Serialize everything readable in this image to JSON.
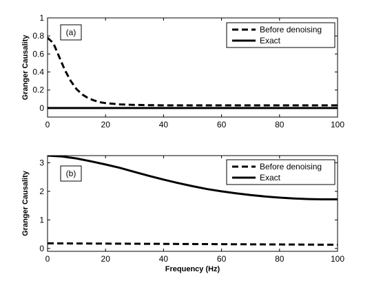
{
  "chart_data": [
    {
      "type": "line",
      "panel_label": "(a)",
      "xlabel": "",
      "ylabel": "Granger Causality",
      "xlim": [
        0,
        100
      ],
      "ylim": [
        -0.1,
        1.0
      ],
      "xticks": [
        0,
        20,
        40,
        60,
        80,
        100
      ],
      "yticks": [
        0,
        0.2,
        0.4,
        0.6,
        0.8,
        1
      ],
      "ytick_labels": [
        "0",
        "0.2",
        "0.4",
        "0.6",
        "0.8",
        "1"
      ],
      "legend_position": "top-right",
      "grid": false,
      "series": [
        {
          "name": "Before denoising",
          "style": "dashed",
          "x": [
            0,
            2,
            4,
            6,
            8,
            10,
            12,
            14,
            16,
            18,
            20,
            25,
            30,
            35,
            40,
            50,
            60,
            70,
            80,
            90,
            100
          ],
          "y": [
            0.78,
            0.72,
            0.57,
            0.42,
            0.3,
            0.21,
            0.15,
            0.11,
            0.085,
            0.065,
            0.055,
            0.04,
            0.035,
            0.032,
            0.03,
            0.03,
            0.03,
            0.03,
            0.03,
            0.03,
            0.03
          ]
        },
        {
          "name": "Exact",
          "style": "solid",
          "x": [
            0,
            100
          ],
          "y": [
            0,
            0
          ]
        }
      ]
    },
    {
      "type": "line",
      "panel_label": "(b)",
      "xlabel": "Frequency (Hz)",
      "ylabel": "Granger Causality",
      "xlim": [
        0,
        100
      ],
      "ylim": [
        -0.1,
        3.25
      ],
      "xticks": [
        0,
        20,
        40,
        60,
        80,
        100
      ],
      "yticks": [
        0,
        1,
        2,
        3
      ],
      "ytick_labels": [
        "0",
        "1",
        "2",
        "3"
      ],
      "legend_position": "top-right",
      "grid": false,
      "series": [
        {
          "name": "Before denoising",
          "style": "dashed",
          "x": [
            0,
            20,
            40,
            60,
            80,
            100
          ],
          "y": [
            0.18,
            0.17,
            0.16,
            0.15,
            0.14,
            0.13
          ]
        },
        {
          "name": "Exact",
          "style": "solid",
          "x": [
            0,
            5,
            10,
            15,
            20,
            25,
            30,
            35,
            40,
            45,
            50,
            55,
            60,
            65,
            70,
            75,
            80,
            85,
            90,
            95,
            100
          ],
          "y": [
            3.25,
            3.22,
            3.15,
            3.05,
            2.94,
            2.82,
            2.68,
            2.54,
            2.41,
            2.29,
            2.18,
            2.08,
            2.0,
            1.93,
            1.87,
            1.82,
            1.78,
            1.75,
            1.73,
            1.72,
            1.72
          ]
        }
      ]
    }
  ]
}
